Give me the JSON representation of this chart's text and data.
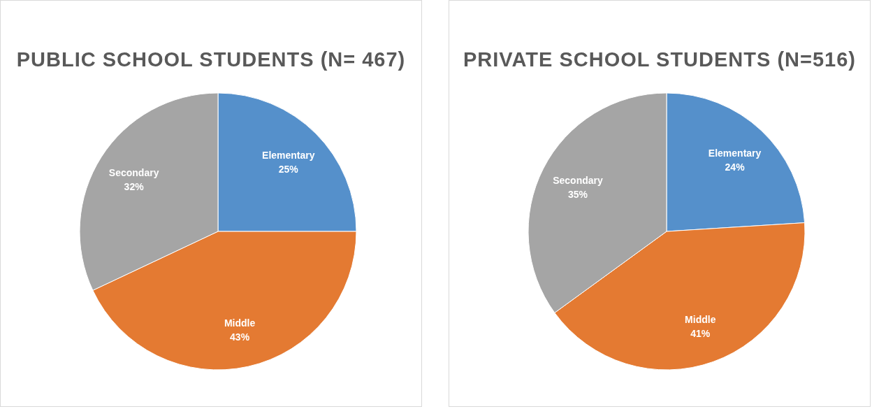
{
  "chart_data": [
    {
      "type": "pie",
      "title": "PUBLIC SCHOOL STUDENTS (N= 467)",
      "categories": [
        "Elementary",
        "Middle",
        "Secondary"
      ],
      "values": [
        25,
        43,
        32
      ],
      "colors": [
        "#5590cb",
        "#e47a32",
        "#a5a5a5"
      ],
      "value_labels": [
        "25%",
        "43%",
        "32%"
      ]
    },
    {
      "type": "pie",
      "title": "PRIVATE SCHOOL STUDENTS (N=516)",
      "categories": [
        "Elementary",
        "Middle",
        "Secondary"
      ],
      "values": [
        24,
        41,
        35
      ],
      "colors": [
        "#5590cb",
        "#e47a32",
        "#a5a5a5"
      ],
      "value_labels": [
        "24%",
        "41%",
        "35%"
      ]
    }
  ]
}
